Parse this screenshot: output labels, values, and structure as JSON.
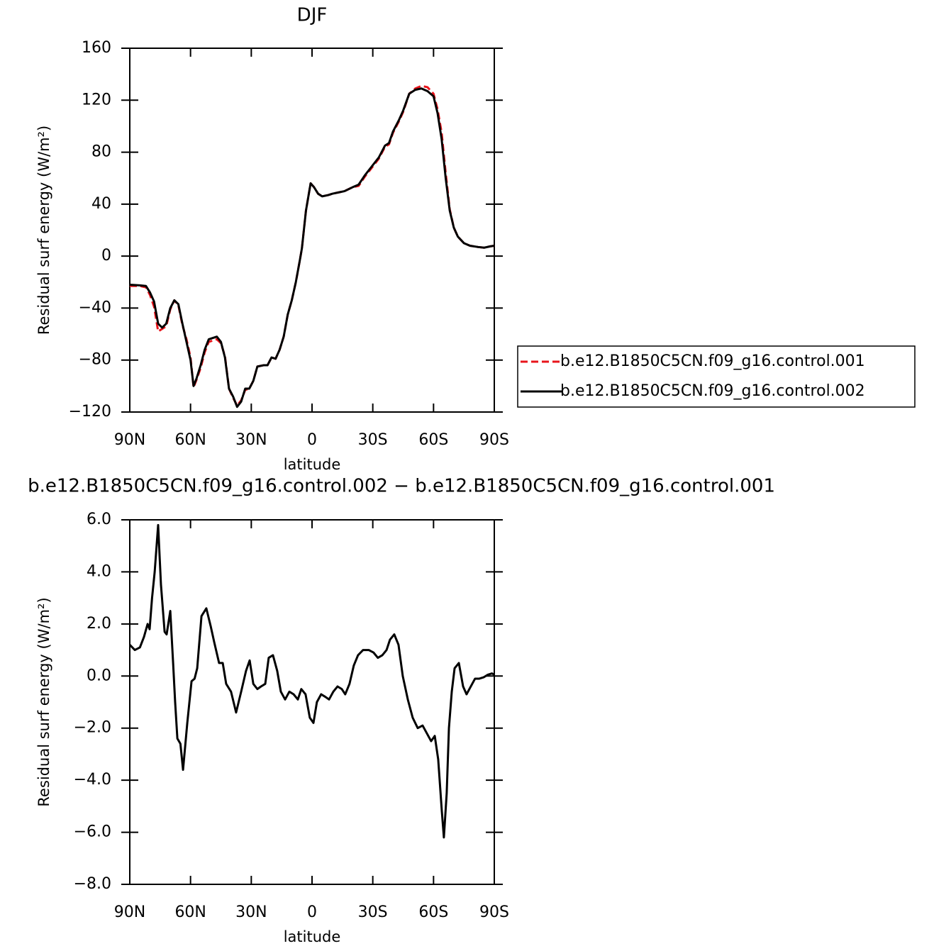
{
  "chart_data": [
    {
      "type": "line",
      "title": "DJF",
      "xlabel": "latitude",
      "ylabel": "Residual surf energy (W/m²)",
      "x": [
        90,
        85,
        82,
        80,
        78,
        76,
        74,
        72,
        70,
        68,
        66,
        64,
        62,
        60,
        58.5,
        57,
        55,
        53,
        51,
        49,
        47,
        45,
        43,
        41,
        39,
        37,
        35,
        33,
        31,
        29,
        27,
        24,
        22,
        20,
        18,
        16,
        14,
        12,
        10,
        8,
        6,
        5,
        3,
        0.7,
        -1,
        -3,
        -5,
        -8,
        -10,
        -13,
        -16,
        -20,
        -23,
        -26,
        -30,
        -33,
        -36,
        -38,
        -40,
        -43,
        -45,
        -48,
        -51,
        -54,
        -57,
        -60,
        -62,
        -64,
        -66,
        -68,
        -70,
        -72,
        -75,
        -78,
        -82,
        -85,
        -88,
        -90
      ],
      "series": [
        {
          "name": "b.e12.B1850C5CN.f09_g16.control.001",
          "color": "#e8141b",
          "line_style": "dashed",
          "values": [
            -23,
            -23,
            -24,
            -30,
            -39,
            -58,
            -56,
            -54,
            -41,
            -34,
            -38,
            -53,
            -64,
            -78,
            -101,
            -95,
            -86,
            -74,
            -66,
            -65,
            -64,
            -67,
            -77,
            -102,
            -109,
            -115,
            -111,
            -103,
            -102,
            -96,
            -85,
            -84,
            -84,
            -78,
            -79,
            -72,
            -62,
            -45,
            -34,
            -20,
            -3,
            6,
            35,
            56,
            53,
            48,
            46,
            47,
            48,
            49,
            50,
            53,
            54,
            61,
            69,
            75,
            84,
            86,
            95,
            104,
            111,
            125,
            129,
            131,
            130,
            125,
            113,
            95,
            64,
            36,
            22,
            15,
            10,
            8,
            7,
            6.5,
            7.5,
            8
          ]
        },
        {
          "name": "b.e12.B1850C5CN.f09_g16.control.002",
          "color": "#000000",
          "line_style": "solid",
          "values": [
            -22,
            -22.5,
            -23,
            -28,
            -35,
            -52,
            -55,
            -52,
            -40,
            -34,
            -37,
            -52,
            -66,
            -80,
            -100,
            -94,
            -84,
            -72,
            -64,
            -63,
            -62,
            -66,
            -78,
            -102,
            -108,
            -116,
            -112,
            -102,
            -102,
            -96,
            -85,
            -84,
            -84,
            -78,
            -79,
            -72,
            -62,
            -45,
            -34,
            -20,
            -3,
            6,
            35,
            56,
            53,
            48,
            46,
            47,
            48,
            49,
            50,
            53,
            55,
            62,
            70,
            76,
            85,
            87,
            96,
            105,
            112,
            125,
            128,
            129,
            127,
            123,
            110,
            90,
            60,
            35,
            22,
            15,
            10,
            8,
            7,
            6.5,
            7.5,
            8
          ]
        }
      ],
      "legend": "right",
      "xlim": [
        90,
        -90
      ],
      "xticks": [
        {
          "value": 90,
          "label": "90N"
        },
        {
          "value": 60,
          "label": "60N"
        },
        {
          "value": 30,
          "label": "30N"
        },
        0,
        {
          "value": -30,
          "label": "30S"
        },
        {
          "value": -60,
          "label": "60S"
        },
        {
          "value": -90,
          "label": "90S"
        }
      ],
      "ylim": [
        -120,
        160
      ],
      "yticks": [
        {
          "value": 160,
          "label": "160"
        },
        {
          "value": 120,
          "label": "120"
        },
        {
          "value": 80,
          "label": "80"
        },
        {
          "value": 40,
          "label": "40"
        },
        0,
        {
          "value": -40,
          "label": "−40"
        },
        {
          "value": -80,
          "label": "−80"
        },
        {
          "value": -120,
          "label": "−120"
        }
      ]
    },
    {
      "type": "line",
      "title": "b.e12.B1850C5CN.f09_g16.control.002 − b.e12.B1850C5CN.f09_g16.control.001",
      "xlabel": "latitude",
      "ylabel": "Residual surf energy (W/m²)",
      "x": [
        90,
        87.5,
        85,
        83,
        81.2,
        80.2,
        79,
        77.7,
        76,
        74.6,
        72.8,
        71.8,
        70,
        68.6,
        67.6,
        66.5,
        65,
        63.7,
        61.6,
        59.5,
        58,
        56.7,
        54.6,
        52.2,
        50,
        48.3,
        45.9,
        44.1,
        42.4,
        40,
        37.5,
        35,
        32.6,
        30.8,
        29,
        27,
        25.2,
        23.1,
        21.4,
        19.3,
        17.2,
        15.4,
        13.3,
        11.2,
        9.1,
        7,
        5.3,
        3.2,
        1.1,
        -0.7,
        -2.4,
        -4.5,
        -6.6,
        -8.4,
        -10.5,
        -12.6,
        -14.7,
        -16.4,
        -18.5,
        -20.6,
        -22.7,
        -25.2,
        -28,
        -30.4,
        -32.5,
        -34.7,
        -36.8,
        -38.5,
        -40.6,
        -42.7,
        -44.8,
        -47.3,
        -49.7,
        -52.2,
        -54.6,
        -56.7,
        -58.8,
        -60.6,
        -62.3,
        -64.1,
        -65.1,
        -66.5,
        -67.6,
        -69,
        -70.4,
        -72.5,
        -74.6,
        -76.3,
        -78.4,
        -80.5,
        -82.6,
        -84.7,
        -86.8,
        -88.9,
        -90
      ],
      "series": [
        {
          "color": "#000000",
          "line_style": "solid",
          "values": [
            1.2,
            1.0,
            1.1,
            1.5,
            2.0,
            1.8,
            3.0,
            4.0,
            5.8,
            3.5,
            1.7,
            1.6,
            2.5,
            0.5,
            -1.0,
            -2.4,
            -2.6,
            -3.6,
            -1.8,
            -0.2,
            -0.1,
            0.3,
            2.3,
            2.6,
            1.9,
            1.3,
            0.5,
            0.5,
            -0.3,
            -0.6,
            -1.4,
            -0.6,
            0.2,
            0.6,
            -0.3,
            -0.5,
            -0.4,
            -0.3,
            0.7,
            0.8,
            0.2,
            -0.6,
            -0.9,
            -0.6,
            -0.7,
            -0.9,
            -0.5,
            -0.7,
            -1.6,
            -1.8,
            -1.0,
            -0.7,
            -0.8,
            -0.9,
            -0.6,
            -0.4,
            -0.5,
            -0.7,
            -0.3,
            0.4,
            0.8,
            1.0,
            1.0,
            0.9,
            0.7,
            0.8,
            1.0,
            1.4,
            1.6,
            1.2,
            0.0,
            -0.9,
            -1.6,
            -2.0,
            -1.9,
            -2.2,
            -2.5,
            -2.3,
            -3.2,
            -5.2,
            -6.2,
            -4.5,
            -2.0,
            -0.6,
            0.3,
            0.5,
            -0.4,
            -0.7,
            -0.4,
            -0.1,
            -0.1,
            -0.05,
            0.05,
            0.1,
            0.05
          ]
        }
      ],
      "xlim": [
        90,
        -90
      ],
      "xticks": [
        {
          "value": 90,
          "label": "90N"
        },
        {
          "value": 60,
          "label": "60N"
        },
        {
          "value": 30,
          "label": "30N"
        },
        0,
        {
          "value": -30,
          "label": "30S"
        },
        {
          "value": -60,
          "label": "60S"
        },
        {
          "value": -90,
          "label": "90S"
        }
      ],
      "ylim": [
        -8,
        6
      ],
      "yticks": [
        {
          "value": 6,
          "label": "6.0"
        },
        {
          "value": 4,
          "label": "4.0"
        },
        {
          "value": 2,
          "label": "2.0"
        },
        {
          "value": 0,
          "label": "0.0"
        },
        {
          "value": -2,
          "label": "−2.0"
        },
        {
          "value": -4,
          "label": "−4.0"
        },
        {
          "value": -6,
          "label": "−6.0"
        },
        {
          "value": -8,
          "label": "−8.0"
        }
      ]
    }
  ]
}
